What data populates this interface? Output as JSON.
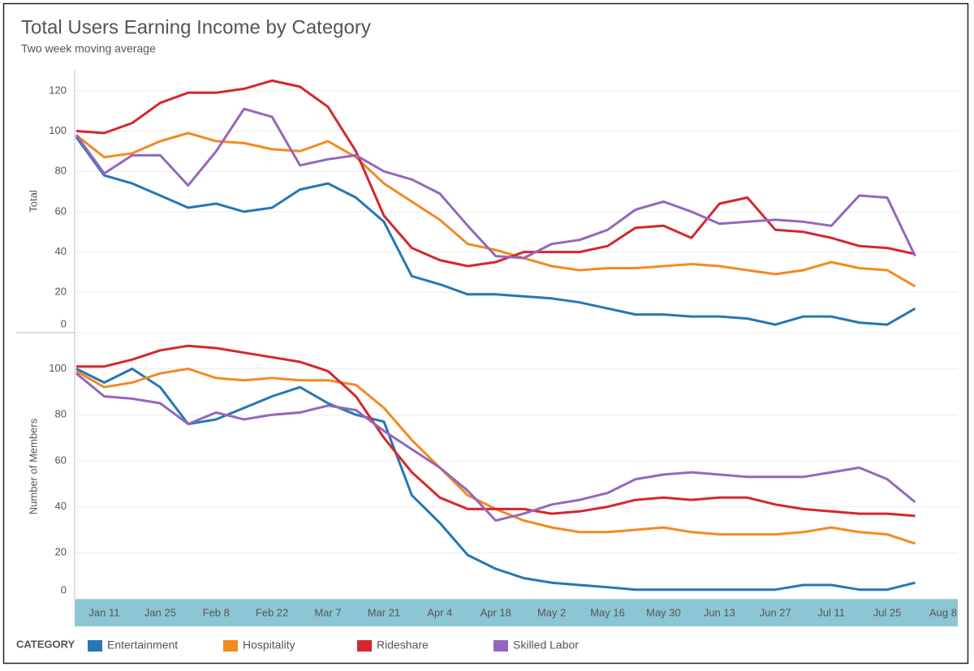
{
  "title": "Total Users Earning Income by Category",
  "subtitle": "Two week moving average",
  "legend_title": "CATEGORY",
  "chart_data": {
    "type": "line",
    "categories": [
      null,
      "Jan 11",
      null,
      "Jan 25",
      null,
      "Feb 8",
      null,
      "Feb 22",
      null,
      "Mar 7",
      null,
      "Mar 21",
      null,
      "Apr 4",
      null,
      "Apr 18",
      null,
      "May 2",
      null,
      "May 16",
      null,
      "May 30",
      null,
      "Jun 13",
      null,
      "Jun 27",
      null,
      "Jul 11",
      null,
      "Jul 25",
      null,
      "Aug 8"
    ],
    "grid": true,
    "panels": [
      {
        "ylabel": "Total",
        "ylim": [
          0,
          130
        ],
        "yticks": [
          0,
          20,
          40,
          60,
          80,
          100,
          120
        ],
        "series": [
          {
            "name": "Entertainment",
            "color": "#2677b4",
            "values": [
              97,
              78,
              74,
              68,
              62,
              64,
              60,
              62,
              71,
              74,
              67,
              55,
              28,
              24,
              19,
              19,
              18,
              17,
              15,
              12,
              9,
              9,
              8,
              8,
              7,
              4,
              8,
              8,
              5,
              4,
              12,
              null
            ]
          },
          {
            "name": "Hospitality",
            "color": "#f28a1f",
            "values": [
              98,
              87,
              89,
              95,
              99,
              95,
              94,
              91,
              90,
              95,
              87,
              74,
              65,
              56,
              44,
              41,
              37,
              33,
              31,
              32,
              32,
              33,
              34,
              33,
              31,
              29,
              31,
              35,
              32,
              31,
              23,
              null
            ]
          },
          {
            "name": "Rideshare",
            "color": "#d6262e",
            "values": [
              100,
              99,
              104,
              114,
              119,
              119,
              121,
              125,
              122,
              112,
              90,
              58,
              42,
              36,
              33,
              35,
              40,
              40,
              40,
              43,
              52,
              53,
              47,
              64,
              67,
              51,
              50,
              47,
              43,
              42,
              39,
              null
            ]
          },
          {
            "name": "Skilled Labor",
            "color": "#9467bd",
            "values": [
              98,
              79,
              88,
              88,
              73,
              90,
              111,
              107,
              83,
              86,
              88,
              80,
              76,
              69,
              53,
              38,
              37,
              44,
              46,
              51,
              61,
              65,
              60,
              54,
              55,
              56,
              55,
              53,
              68,
              67,
              38,
              null
            ]
          }
        ]
      },
      {
        "ylabel": "Number of Members",
        "ylim": [
          0,
          115
        ],
        "yticks": [
          0,
          20,
          40,
          60,
          80,
          100
        ],
        "series": [
          {
            "name": "Entertainment",
            "color": "#2677b4",
            "values": [
              100,
              94,
              100,
              92,
              76,
              78,
              83,
              88,
              92,
              85,
              80,
              77,
              45,
              33,
              19,
              13,
              9,
              7,
              6,
              5,
              4,
              4,
              4,
              4,
              4,
              4,
              6,
              6,
              4,
              4,
              7,
              null
            ]
          },
          {
            "name": "Hospitality",
            "color": "#f28a1f",
            "values": [
              99,
              92,
              94,
              98,
              100,
              96,
              95,
              96,
              95,
              95,
              93,
              83,
              69,
              57,
              45,
              39,
              34,
              31,
              29,
              29,
              30,
              31,
              29,
              28,
              28,
              28,
              29,
              31,
              29,
              28,
              24,
              null
            ]
          },
          {
            "name": "Rideshare",
            "color": "#d6262e",
            "values": [
              101,
              101,
              104,
              108,
              110,
              109,
              107,
              105,
              103,
              99,
              88,
              70,
              55,
              44,
              39,
              39,
              39,
              37,
              38,
              40,
              43,
              44,
              43,
              44,
              44,
              41,
              39,
              38,
              37,
              37,
              36,
              null
            ]
          },
          {
            "name": "Skilled Labor",
            "color": "#9467bd",
            "values": [
              98,
              88,
              87,
              85,
              76,
              81,
              78,
              80,
              81,
              84,
              82,
              73,
              65,
              57,
              47,
              34,
              37,
              41,
              43,
              46,
              52,
              54,
              55,
              54,
              53,
              53,
              53,
              55,
              57,
              52,
              42,
              null
            ]
          }
        ]
      }
    ]
  }
}
